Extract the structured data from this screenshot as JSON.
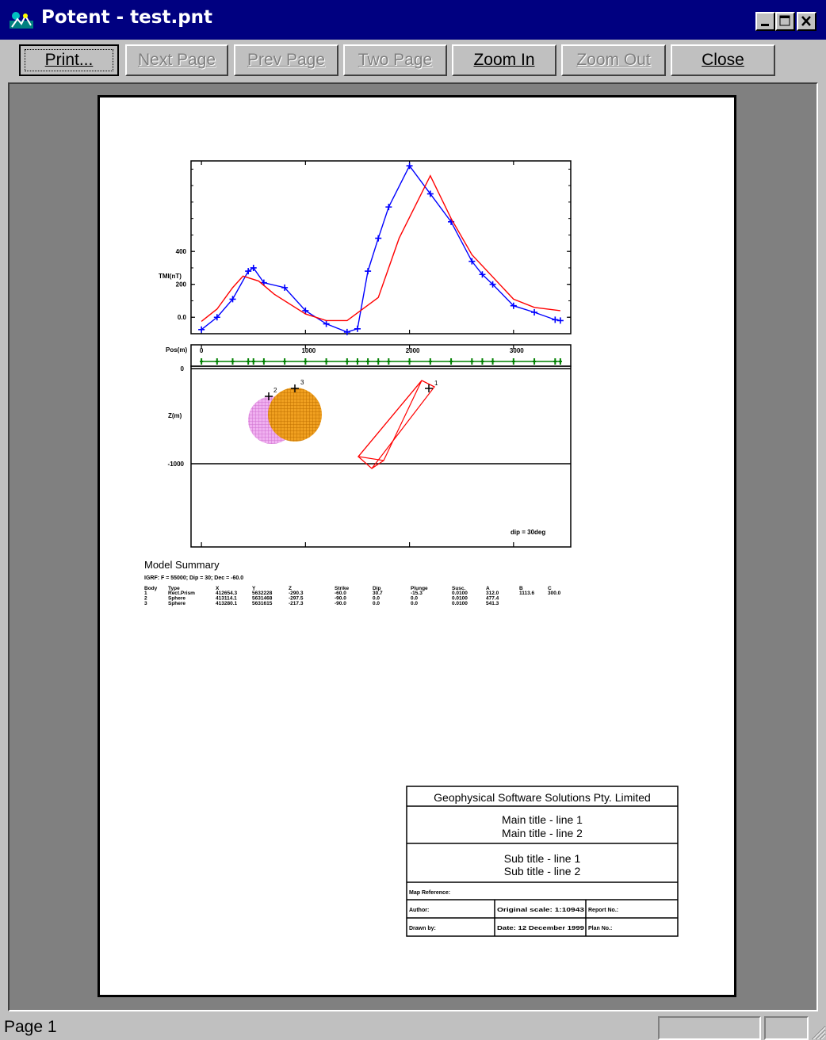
{
  "window": {
    "title": "Potent - test.pnt",
    "minimize_glyph": "_",
    "maximize_glyph": "□",
    "close_glyph": "✕"
  },
  "toolbar": {
    "print_label": "Print...",
    "next_page_label": "Next Page",
    "prev_page_label": "Prev Page",
    "two_page_label": "Two Page",
    "zoom_in_label": "Zoom In",
    "zoom_out_label": "Zoom Out",
    "close_label": "Close"
  },
  "chart_data": [
    {
      "type": "line",
      "ylabel": "TMI(nT)",
      "ylim": [
        -100,
        950
      ],
      "y_ticks": [
        "400",
        "200",
        "0.0"
      ],
      "x_ticks": [
        0,
        1000,
        2000,
        3000
      ],
      "xlim": [
        -100,
        3550
      ],
      "series": [
        {
          "name": "",
          "color": "#0000ff",
          "marker": "cross",
          "x": [
            0,
            150,
            300,
            450,
            500,
            600,
            800,
            1000,
            1200,
            1400,
            1500,
            1600,
            1700,
            1800,
            2000,
            2200,
            2400,
            2600,
            2700,
            2800,
            3000,
            3200,
            3400,
            3450
          ],
          "y": [
            -75,
            0,
            110,
            280,
            300,
            210,
            180,
            40,
            -40,
            -90,
            -70,
            280,
            480,
            670,
            920,
            750,
            580,
            340,
            260,
            200,
            70,
            30,
            -15,
            -20
          ]
        },
        {
          "name": "",
          "color": "#ff0000",
          "marker": "none",
          "x": [
            0,
            150,
            300,
            400,
            550,
            700,
            1000,
            1200,
            1400,
            1700,
            1900,
            2200,
            2400,
            2600,
            3000,
            3200,
            3450
          ],
          "y": [
            -25,
            50,
            180,
            250,
            220,
            140,
            20,
            -20,
            -20,
            120,
            480,
            860,
            600,
            380,
            110,
            60,
            40
          ]
        }
      ],
      "grid": false
    },
    {
      "type": "scatter",
      "title": "",
      "xlabel": "Pos(m)",
      "ylabel": "Z(m)",
      "x_ticks": [
        "0",
        "1000",
        "2000",
        "3000"
      ],
      "y_ticks": [
        "0",
        "-1000"
      ],
      "dip_note": "dip = 30deg",
      "observation_points_color": "#008000",
      "bodies": [
        {
          "id": "1",
          "type": "Rectangular Prism",
          "color": "#ff0000"
        },
        {
          "id": "2",
          "type": "Sphere",
          "color": "#e08ae0"
        },
        {
          "id": "3",
          "type": "Sphere",
          "color": "#e08a00"
        }
      ]
    }
  ],
  "model_summary": {
    "heading": "Model Summary",
    "igrf_line": "IGRF:   F = 55000;  Dip = 30;  Dec = -60.0",
    "columns": [
      "Body",
      "Type",
      "X",
      "Y",
      "Z",
      "Strike",
      "Dip",
      "Plunge",
      "Susc.",
      "A",
      "B",
      "C"
    ],
    "rows": [
      [
        "1",
        "Rect.Prism",
        "412654.3",
        "5632228",
        "-290.3",
        "-60.0",
        "30.7",
        "-15.3",
        "0.0100",
        "312.0",
        "1113.6",
        "300.0"
      ],
      [
        "2",
        "Sphere",
        "413114.1",
        "5631468",
        "-297.5",
        "-90.0",
        "0.0",
        "0.0",
        "0.0100",
        "477.4",
        "",
        ""
      ],
      [
        "3",
        "Sphere",
        "413280.1",
        "5631615",
        "-217.3",
        "-90.0",
        "0.0",
        "0.0",
        "0.0100",
        "541.3",
        "",
        ""
      ]
    ]
  },
  "title_block": {
    "company": "Geophysical Software Solutions Pty. Limited",
    "main_title_1": "Main title - line 1",
    "main_title_2": "Main title - line 2",
    "sub_title_1": "Sub title - line 1",
    "sub_title_2": "Sub title - line 2",
    "map_reference": "Map Reference:",
    "author": "Author:",
    "original_scale": "Original scale: 1:10943",
    "report_no": "Report No.:",
    "drawn_by": "Drawn by:",
    "date": "Date: 12 December 1999",
    "plan_no": "Plan No.:"
  },
  "status": {
    "page_label": "Page 1"
  }
}
